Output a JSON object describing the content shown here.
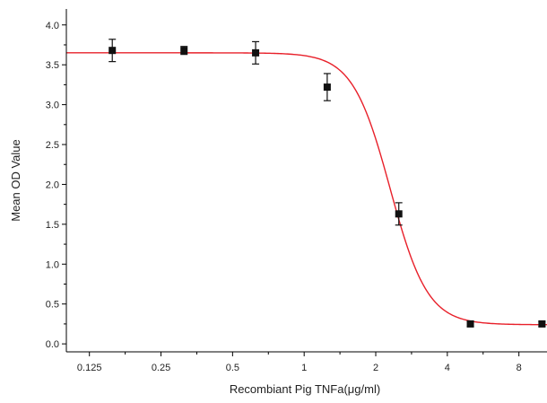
{
  "chart_data": {
    "type": "scatter",
    "xlabel": "Recombiant Pig TNFa(μg/ml)",
    "ylabel": "Mean OD Value",
    "x_scale": "log2",
    "xlim": [
      0.1,
      10.5
    ],
    "ylim": [
      -0.1,
      4.2
    ],
    "x_ticks": [
      {
        "value": 0.125,
        "label": "0.125"
      },
      {
        "value": 0.25,
        "label": "0.25"
      },
      {
        "value": 0.5,
        "label": "0.5"
      },
      {
        "value": 1,
        "label": "1"
      },
      {
        "value": 2,
        "label": "2"
      },
      {
        "value": 4,
        "label": "4"
      },
      {
        "value": 8,
        "label": "8"
      }
    ],
    "y_ticks": [
      {
        "value": 0.0,
        "label": "0.0"
      },
      {
        "value": 0.5,
        "label": "0.5"
      },
      {
        "value": 1.0,
        "label": "1.0"
      },
      {
        "value": 1.5,
        "label": "1.5"
      },
      {
        "value": 2.0,
        "label": "2.0"
      },
      {
        "value": 2.5,
        "label": "2.5"
      },
      {
        "value": 3.0,
        "label": "3.0"
      },
      {
        "value": 3.5,
        "label": "3.5"
      },
      {
        "value": 4.0,
        "label": "4.0"
      }
    ],
    "grid": false,
    "points": [
      {
        "x": 0.156,
        "y": 3.68,
        "err": 0.14
      },
      {
        "x": 0.3125,
        "y": 3.68,
        "err": 0.05
      },
      {
        "x": 0.625,
        "y": 3.65,
        "err": 0.14
      },
      {
        "x": 1.25,
        "y": 3.22,
        "err": 0.17
      },
      {
        "x": 2.5,
        "y": 1.63,
        "err": 0.14
      },
      {
        "x": 5.0,
        "y": 0.25,
        "err": 0.03
      },
      {
        "x": 10.0,
        "y": 0.25,
        "err": 0.03
      }
    ],
    "fit_curve": {
      "model": "4PL",
      "top": 3.65,
      "bottom": 0.24,
      "ec50": 2.3,
      "hill": 5.5,
      "color": "#e8202a"
    },
    "marker_color": "#111111"
  }
}
